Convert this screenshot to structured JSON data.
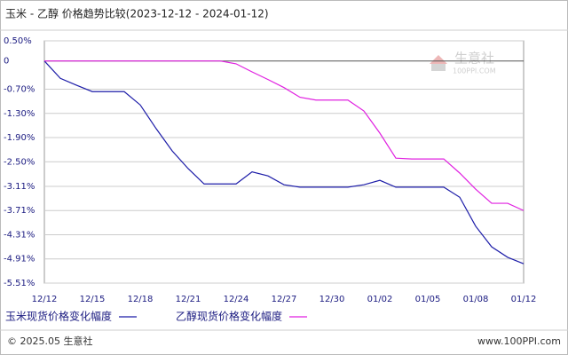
{
  "chart_data": {
    "type": "line",
    "title": "玉米 - 乙醇 价格趋势比较(2023-12-12 - 2024-01-12)",
    "categories": [
      "12/12",
      null,
      null,
      "12/15",
      null,
      null,
      "12/18",
      null,
      null,
      "12/21",
      null,
      null,
      "12/24",
      null,
      null,
      "12/27",
      null,
      null,
      "12/30",
      null,
      null,
      "01/02",
      null,
      null,
      "01/05",
      null,
      null,
      "01/08",
      null,
      null,
      "01/12"
    ],
    "series": [
      {
        "name": "玉米现货价格变化幅度",
        "color": "#1c1ca8",
        "values": [
          0,
          -0.43,
          -0.6,
          -0.76,
          -0.76,
          -0.76,
          -1.09,
          -1.68,
          -2.23,
          -2.67,
          -3.05,
          -3.05,
          -3.05,
          -2.75,
          -2.85,
          -3.07,
          -3.13,
          -3.13,
          -3.13,
          -3.13,
          -3.07,
          -2.96,
          -3.13,
          -3.13,
          -3.13,
          -3.13,
          -3.38,
          -4.1,
          -4.61,
          -4.87,
          -5.03
        ]
      },
      {
        "name": "乙醇现货价格变化幅度",
        "color": "#e020e0",
        "values": [
          0,
          0,
          0,
          0,
          0,
          0,
          0,
          0,
          0,
          0,
          0,
          0,
          -0.07,
          -0.27,
          -0.46,
          -0.66,
          -0.9,
          -0.97,
          -0.97,
          -0.97,
          -1.24,
          -1.79,
          -2.41,
          -2.43,
          -2.43,
          -2.43,
          -2.78,
          -3.18,
          -3.53,
          -3.53,
          -3.71
        ]
      }
    ],
    "ylim": [
      -5.51,
      0.5
    ],
    "yticks": [
      {
        "value": 0.5,
        "label": "0.50%"
      },
      0,
      {
        "value": -0.7,
        "label": "-0.70%"
      },
      {
        "value": -1.3,
        "label": "-1.30%"
      },
      {
        "value": -1.9,
        "label": "-1.90%"
      },
      {
        "value": -2.5,
        "label": "-2.50%"
      },
      {
        "value": -3.11,
        "label": "-3.11%"
      },
      {
        "value": -3.71,
        "label": "-3.71%"
      },
      {
        "value": -4.31,
        "label": "-4.31%"
      },
      {
        "value": -4.91,
        "label": "-4.91%"
      },
      {
        "value": -5.51,
        "label": "-5.51%"
      }
    ],
    "grid": true,
    "watermark": {
      "name": "生意社",
      "site": "100PPI.COM"
    },
    "footer": {
      "left": "© 2025.05 生意社",
      "right": "www.100PPI.com"
    }
  }
}
